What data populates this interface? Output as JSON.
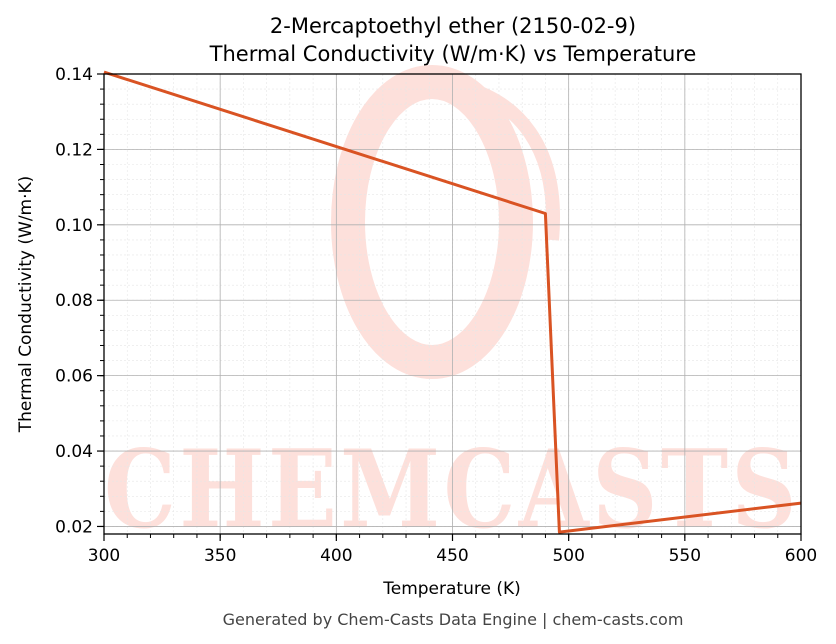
{
  "chart_data": {
    "type": "line",
    "title": "2-Mercaptoethyl ether (2150-02-9)",
    "subtitle": "Thermal Conductivity (W/m·K) vs Temperature",
    "xlabel": "Temperature (K)",
    "ylabel": "Thermal Conductivity (W/m·K)",
    "xlim": [
      300,
      600
    ],
    "ylim": [
      0.018,
      0.14
    ],
    "xticks": [
      300,
      350,
      400,
      450,
      500,
      550,
      600
    ],
    "yticks": [
      0.02,
      0.04,
      0.06,
      0.08,
      0.1,
      0.12,
      0.14
    ],
    "ytick_labels": [
      "0.02",
      "0.04",
      "0.06",
      "0.08",
      "0.10",
      "0.12",
      "0.14"
    ],
    "grid": true,
    "series": [
      {
        "color": "#d95323",
        "x": [
          300,
          490,
          496,
          600
        ],
        "y": [
          0.1405,
          0.103,
          0.0185,
          0.0262
        ]
      }
    ]
  },
  "watermark": {
    "text": "CHEMCASTS",
    "color": "#fde0db"
  },
  "footer": "Generated by Chem-Casts Data Engine | chem-casts.com"
}
